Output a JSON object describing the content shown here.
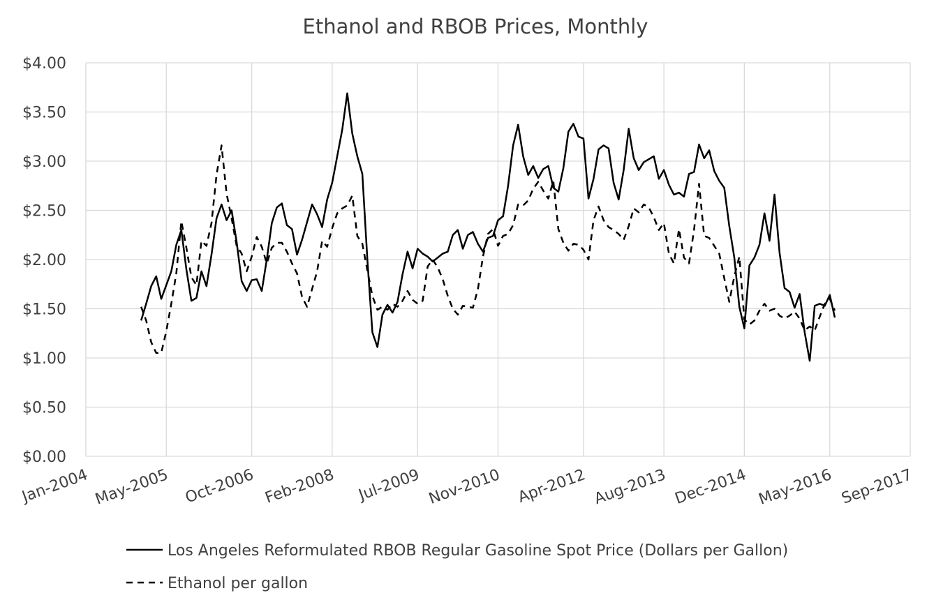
{
  "chart_data": {
    "type": "line",
    "title": "Ethanol and RBOB Prices, Monthly",
    "xlabel": "",
    "ylabel": "",
    "ylim": [
      0,
      4
    ],
    "yticks": [
      "$0.00",
      "$0.50",
      "$1.00",
      "$1.50",
      "$2.00",
      "$2.50",
      "$3.00",
      "$3.50",
      "$4.00"
    ],
    "ytick_values": [
      0,
      0.5,
      1,
      1.5,
      2,
      2.5,
      3,
      3.5,
      4
    ],
    "xlim": [
      "2004-01",
      "2017-09"
    ],
    "xticks": [
      "Jan-2004",
      "May-2005",
      "Oct-2006",
      "Feb-2008",
      "Jul-2009",
      "Nov-2010",
      "Apr-2012",
      "Aug-2013",
      "Dec-2014",
      "May-2016",
      "Sep-2017"
    ],
    "xtick_dates": [
      "2004-01",
      "2005-05",
      "2006-10",
      "2008-02",
      "2009-07",
      "2010-11",
      "2012-04",
      "2013-08",
      "2014-12",
      "2016-05",
      "2017-09"
    ],
    "grid": true,
    "legend_position": "bottom",
    "series": [
      {
        "name": "Los Angeles Reformulated RBOB Regular Gasoline Spot Price (Dollars per Gallon)",
        "style": "solid",
        "color": "#000000",
        "points": [
          [
            "2004-12",
            1.38
          ],
          [
            "2005-01",
            1.55
          ],
          [
            "2005-02",
            1.73
          ],
          [
            "2005-03",
            1.83
          ],
          [
            "2005-04",
            1.6
          ],
          [
            "2005-05",
            1.74
          ],
          [
            "2005-06",
            1.88
          ],
          [
            "2005-07",
            2.15
          ],
          [
            "2005-08",
            2.3
          ],
          [
            "2005-09",
            1.9
          ],
          [
            "2005-10",
            1.58
          ],
          [
            "2005-11",
            1.61
          ],
          [
            "2005-12",
            1.88
          ],
          [
            "2006-01",
            1.73
          ],
          [
            "2006-02",
            2.05
          ],
          [
            "2006-03",
            2.42
          ],
          [
            "2006-04",
            2.56
          ],
          [
            "2006-05",
            2.4
          ],
          [
            "2006-06",
            2.5
          ],
          [
            "2006-07",
            2.18
          ],
          [
            "2006-08",
            1.78
          ],
          [
            "2006-09",
            1.68
          ],
          [
            "2006-10",
            1.79
          ],
          [
            "2006-11",
            1.8
          ],
          [
            "2006-12",
            1.68
          ],
          [
            "2007-01",
            2.0
          ],
          [
            "2007-02",
            2.37
          ],
          [
            "2007-03",
            2.53
          ],
          [
            "2007-04",
            2.57
          ],
          [
            "2007-05",
            2.35
          ],
          [
            "2007-06",
            2.31
          ],
          [
            "2007-07",
            2.05
          ],
          [
            "2007-08",
            2.2
          ],
          [
            "2007-09",
            2.38
          ],
          [
            "2007-10",
            2.56
          ],
          [
            "2007-11",
            2.46
          ],
          [
            "2007-12",
            2.33
          ],
          [
            "2008-01",
            2.61
          ],
          [
            "2008-02",
            2.78
          ],
          [
            "2008-03",
            3.05
          ],
          [
            "2008-04",
            3.32
          ],
          [
            "2008-05",
            3.69
          ],
          [
            "2008-06",
            3.28
          ],
          [
            "2008-07",
            3.05
          ],
          [
            "2008-08",
            2.87
          ],
          [
            "2008-09",
            2.0
          ],
          [
            "2008-10",
            1.26
          ],
          [
            "2008-11",
            1.11
          ],
          [
            "2008-12",
            1.44
          ],
          [
            "2009-01",
            1.54
          ],
          [
            "2009-02",
            1.46
          ],
          [
            "2009-03",
            1.57
          ],
          [
            "2009-04",
            1.85
          ],
          [
            "2009-05",
            2.08
          ],
          [
            "2009-06",
            1.91
          ],
          [
            "2009-07",
            2.11
          ],
          [
            "2009-08",
            2.06
          ],
          [
            "2009-09",
            2.03
          ],
          [
            "2009-10",
            1.98
          ],
          [
            "2009-11",
            2.02
          ],
          [
            "2009-12",
            2.06
          ],
          [
            "2010-01",
            2.08
          ],
          [
            "2010-02",
            2.25
          ],
          [
            "2010-03",
            2.3
          ],
          [
            "2010-04",
            2.11
          ],
          [
            "2010-05",
            2.25
          ],
          [
            "2010-06",
            2.28
          ],
          [
            "2010-07",
            2.16
          ],
          [
            "2010-08",
            2.08
          ],
          [
            "2010-09",
            2.22
          ],
          [
            "2010-10",
            2.24
          ],
          [
            "2010-11",
            2.4
          ],
          [
            "2010-12",
            2.44
          ],
          [
            "2011-01",
            2.75
          ],
          [
            "2011-02",
            3.16
          ],
          [
            "2011-03",
            3.37
          ],
          [
            "2011-04",
            3.05
          ],
          [
            "2011-05",
            2.86
          ],
          [
            "2011-06",
            2.95
          ],
          [
            "2011-07",
            2.83
          ],
          [
            "2011-08",
            2.92
          ],
          [
            "2011-09",
            2.95
          ],
          [
            "2011-10",
            2.73
          ],
          [
            "2011-11",
            2.69
          ],
          [
            "2011-12",
            2.93
          ],
          [
            "2012-01",
            3.3
          ],
          [
            "2012-02",
            3.38
          ],
          [
            "2012-03",
            3.25
          ],
          [
            "2012-04",
            3.23
          ],
          [
            "2012-05",
            2.62
          ],
          [
            "2012-06",
            2.82
          ],
          [
            "2012-07",
            3.12
          ],
          [
            "2012-08",
            3.16
          ],
          [
            "2012-09",
            3.13
          ],
          [
            "2012-10",
            2.78
          ],
          [
            "2012-11",
            2.61
          ],
          [
            "2012-12",
            2.91
          ],
          [
            "2013-01",
            3.33
          ],
          [
            "2013-02",
            3.03
          ],
          [
            "2013-03",
            2.91
          ],
          [
            "2013-04",
            2.99
          ],
          [
            "2013-05",
            3.02
          ],
          [
            "2013-06",
            3.05
          ],
          [
            "2013-07",
            2.82
          ],
          [
            "2013-08",
            2.91
          ],
          [
            "2013-09",
            2.76
          ],
          [
            "2013-10",
            2.66
          ],
          [
            "2013-11",
            2.68
          ],
          [
            "2013-12",
            2.64
          ],
          [
            "2014-01",
            2.87
          ],
          [
            "2014-02",
            2.89
          ],
          [
            "2014-03",
            3.17
          ],
          [
            "2014-04",
            3.03
          ],
          [
            "2014-05",
            3.11
          ],
          [
            "2014-06",
            2.9
          ],
          [
            "2014-07",
            2.8
          ],
          [
            "2014-08",
            2.73
          ],
          [
            "2014-09",
            2.34
          ],
          [
            "2014-10",
            2.02
          ],
          [
            "2014-11",
            1.52
          ],
          [
            "2014-12",
            1.3
          ],
          [
            "2015-01",
            1.94
          ],
          [
            "2015-02",
            2.02
          ],
          [
            "2015-03",
            2.15
          ],
          [
            "2015-04",
            2.47
          ],
          [
            "2015-05",
            2.19
          ],
          [
            "2015-06",
            2.66
          ],
          [
            "2015-07",
            2.07
          ],
          [
            "2015-08",
            1.71
          ],
          [
            "2015-09",
            1.67
          ],
          [
            "2015-10",
            1.51
          ],
          [
            "2015-11",
            1.65
          ],
          [
            "2015-12",
            1.26
          ],
          [
            "2016-01",
            0.97
          ],
          [
            "2016-02",
            1.53
          ],
          [
            "2016-03",
            1.55
          ],
          [
            "2016-04",
            1.53
          ],
          [
            "2016-05",
            1.64
          ],
          [
            "2016-06",
            1.41
          ]
        ]
      },
      {
        "name": "Ethanol per gallon",
        "style": "dashed",
        "color": "#000000",
        "points": [
          [
            "2004-12",
            1.52
          ],
          [
            "2005-01",
            1.38
          ],
          [
            "2005-02",
            1.16
          ],
          [
            "2005-03",
            1.05
          ],
          [
            "2005-04",
            1.05
          ],
          [
            "2005-05",
            1.27
          ],
          [
            "2005-06",
            1.55
          ],
          [
            "2005-07",
            1.86
          ],
          [
            "2005-08",
            2.39
          ],
          [
            "2005-09",
            2.12
          ],
          [
            "2005-10",
            1.82
          ],
          [
            "2005-11",
            1.74
          ],
          [
            "2005-12",
            2.19
          ],
          [
            "2006-01",
            2.14
          ],
          [
            "2006-02",
            2.37
          ],
          [
            "2006-03",
            2.86
          ],
          [
            "2006-04",
            3.16
          ],
          [
            "2006-05",
            2.67
          ],
          [
            "2006-06",
            2.42
          ],
          [
            "2006-07",
            2.14
          ],
          [
            "2006-08",
            2.06
          ],
          [
            "2006-09",
            1.88
          ],
          [
            "2006-10",
            2.03
          ],
          [
            "2006-11",
            2.23
          ],
          [
            "2006-12",
            2.13
          ],
          [
            "2007-01",
            1.96
          ],
          [
            "2007-02",
            2.12
          ],
          [
            "2007-03",
            2.17
          ],
          [
            "2007-04",
            2.17
          ],
          [
            "2007-05",
            2.08
          ],
          [
            "2007-06",
            1.96
          ],
          [
            "2007-07",
            1.86
          ],
          [
            "2007-08",
            1.62
          ],
          [
            "2007-09",
            1.52
          ],
          [
            "2007-10",
            1.7
          ],
          [
            "2007-11",
            1.88
          ],
          [
            "2007-12",
            2.19
          ],
          [
            "2008-01",
            2.13
          ],
          [
            "2008-02",
            2.32
          ],
          [
            "2008-03",
            2.47
          ],
          [
            "2008-04",
            2.52
          ],
          [
            "2008-05",
            2.55
          ],
          [
            "2008-06",
            2.65
          ],
          [
            "2008-07",
            2.24
          ],
          [
            "2008-08",
            2.16
          ],
          [
            "2008-09",
            1.89
          ],
          [
            "2008-10",
            1.63
          ],
          [
            "2008-11",
            1.49
          ],
          [
            "2008-12",
            1.52
          ],
          [
            "2009-01",
            1.49
          ],
          [
            "2009-02",
            1.55
          ],
          [
            "2009-03",
            1.52
          ],
          [
            "2009-04",
            1.58
          ],
          [
            "2009-05",
            1.68
          ],
          [
            "2009-06",
            1.59
          ],
          [
            "2009-07",
            1.55
          ],
          [
            "2009-08",
            1.58
          ],
          [
            "2009-09",
            1.93
          ],
          [
            "2009-10",
            2.0
          ],
          [
            "2009-11",
            1.92
          ],
          [
            "2009-12",
            1.8
          ],
          [
            "2010-01",
            1.63
          ],
          [
            "2010-02",
            1.5
          ],
          [
            "2010-03",
            1.44
          ],
          [
            "2010-04",
            1.53
          ],
          [
            "2010-05",
            1.52
          ],
          [
            "2010-06",
            1.51
          ],
          [
            "2010-07",
            1.7
          ],
          [
            "2010-08",
            2.03
          ],
          [
            "2010-09",
            2.26
          ],
          [
            "2010-10",
            2.31
          ],
          [
            "2010-11",
            2.14
          ],
          [
            "2010-12",
            2.24
          ],
          [
            "2011-01",
            2.26
          ],
          [
            "2011-02",
            2.35
          ],
          [
            "2011-03",
            2.56
          ],
          [
            "2011-04",
            2.55
          ],
          [
            "2011-05",
            2.6
          ],
          [
            "2011-06",
            2.72
          ],
          [
            "2011-07",
            2.79
          ],
          [
            "2011-08",
            2.7
          ],
          [
            "2011-09",
            2.62
          ],
          [
            "2011-10",
            2.8
          ],
          [
            "2011-11",
            2.31
          ],
          [
            "2011-12",
            2.17
          ],
          [
            "2012-01",
            2.09
          ],
          [
            "2012-02",
            2.16
          ],
          [
            "2012-03",
            2.15
          ],
          [
            "2012-04",
            2.1
          ],
          [
            "2012-05",
            2.0
          ],
          [
            "2012-06",
            2.4
          ],
          [
            "2012-07",
            2.54
          ],
          [
            "2012-08",
            2.4
          ],
          [
            "2012-09",
            2.33
          ],
          [
            "2012-10",
            2.3
          ],
          [
            "2012-11",
            2.26
          ],
          [
            "2012-12",
            2.2
          ],
          [
            "2013-01",
            2.34
          ],
          [
            "2013-02",
            2.52
          ],
          [
            "2013-03",
            2.48
          ],
          [
            "2013-04",
            2.56
          ],
          [
            "2013-05",
            2.53
          ],
          [
            "2013-06",
            2.43
          ],
          [
            "2013-07",
            2.3
          ],
          [
            "2013-08",
            2.37
          ],
          [
            "2013-09",
            2.06
          ],
          [
            "2013-10",
            1.96
          ],
          [
            "2013-11",
            2.31
          ],
          [
            "2013-12",
            2.02
          ],
          [
            "2014-01",
            1.96
          ],
          [
            "2014-02",
            2.3
          ],
          [
            "2014-03",
            2.77
          ],
          [
            "2014-04",
            2.24
          ],
          [
            "2014-05",
            2.22
          ],
          [
            "2014-06",
            2.14
          ],
          [
            "2014-07",
            2.06
          ],
          [
            "2014-08",
            1.81
          ],
          [
            "2014-09",
            1.57
          ],
          [
            "2014-10",
            1.83
          ],
          [
            "2014-11",
            2.03
          ],
          [
            "2014-12",
            1.39
          ],
          [
            "2015-01",
            1.34
          ],
          [
            "2015-02",
            1.38
          ],
          [
            "2015-03",
            1.48
          ],
          [
            "2015-04",
            1.55
          ],
          [
            "2015-05",
            1.48
          ],
          [
            "2015-06",
            1.5
          ],
          [
            "2015-07",
            1.43
          ],
          [
            "2015-08",
            1.4
          ],
          [
            "2015-09",
            1.43
          ],
          [
            "2015-10",
            1.47
          ],
          [
            "2015-11",
            1.4
          ],
          [
            "2015-12",
            1.28
          ],
          [
            "2016-01",
            1.32
          ],
          [
            "2016-02",
            1.28
          ],
          [
            "2016-03",
            1.42
          ],
          [
            "2016-04",
            1.55
          ],
          [
            "2016-05",
            1.6
          ],
          [
            "2016-06",
            1.48
          ]
        ]
      }
    ]
  }
}
